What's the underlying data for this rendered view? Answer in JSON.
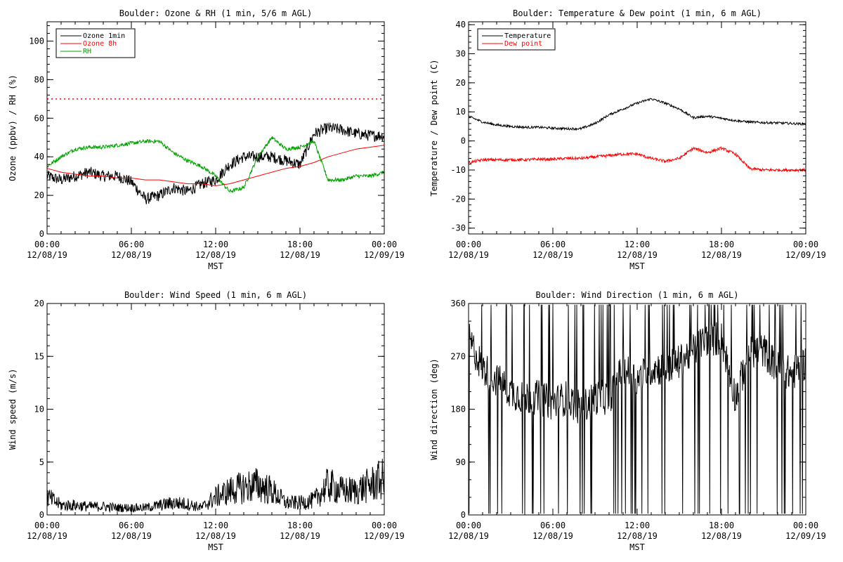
{
  "chart_data": [
    {
      "type": "line",
      "title": "Boulder: Ozone & RH (1 min, 5/6 m AGL)",
      "xlabel": "MST",
      "ylabel": "Ozone (ppbv) / RH (%)",
      "xlim": [
        "12/08/19 00:00",
        "12/09/19 00:00"
      ],
      "ylim": [
        0,
        110
      ],
      "yticks": [
        0,
        20,
        40,
        60,
        80,
        100
      ],
      "x_tick_labels": [
        {
          "time": "00:00",
          "date": "12/08/19"
        },
        {
          "time": "06:00",
          "date": "12/08/19"
        },
        {
          "time": "12:00",
          "date": "12/08/19"
        },
        {
          "time": "18:00",
          "date": "12/08/19"
        },
        {
          "time": "00:00",
          "date": "12/09/19"
        }
      ],
      "legend_position": "top-left",
      "reference_line": {
        "y": 70,
        "style": "dotted",
        "color": "#ff0000"
      },
      "series": [
        {
          "name": "Ozone 1min",
          "color": "#000000",
          "x": [
            "12/08/19 00:00",
            "12/08/19 01:00",
            "12/08/19 02:00",
            "12/08/19 03:00",
            "12/08/19 04:00",
            "12/08/19 05:00",
            "12/08/19 06:00",
            "12/08/19 07:00",
            "12/08/19 08:00",
            "12/08/19 09:00",
            "12/08/19 10:00",
            "12/08/19 11:00",
            "12/08/19 12:00",
            "12/08/19 13:00",
            "12/08/19 14:00",
            "12/08/19 15:00",
            "12/08/19 16:00",
            "12/08/19 17:00",
            "12/08/19 18:00",
            "12/08/19 19:00",
            "12/08/19 20:00",
            "12/08/19 21:00",
            "12/08/19 22:00",
            "12/08/19 23:00",
            "12/09/19 00:00"
          ],
          "y": [
            30,
            28,
            30,
            32,
            30,
            30,
            27,
            18,
            20,
            24,
            22,
            26,
            28,
            36,
            40,
            40,
            40,
            38,
            36,
            52,
            55,
            54,
            52,
            51,
            51
          ]
        },
        {
          "name": "Ozone 8h",
          "color": "#ff0000",
          "x": [
            "12/08/19 00:00",
            "12/08/19 01:00",
            "12/08/19 02:00",
            "12/08/19 03:00",
            "12/08/19 04:00",
            "12/08/19 05:00",
            "12/08/19 06:00",
            "12/08/19 07:00",
            "12/08/19 08:00",
            "12/08/19 09:00",
            "12/08/19 10:00",
            "12/08/19 11:00",
            "12/08/19 12:00",
            "12/08/19 13:00",
            "12/08/19 14:00",
            "12/08/19 15:00",
            "12/08/19 16:00",
            "12/08/19 17:00",
            "12/08/19 18:00",
            "12/08/19 19:00",
            "12/08/19 20:00",
            "12/08/19 21:00",
            "12/08/19 22:00",
            "12/08/19 23:00",
            "12/09/19 00:00"
          ],
          "y": [
            34,
            32,
            31,
            30,
            30,
            29,
            29,
            28,
            28,
            27,
            26,
            26,
            25,
            26,
            28,
            30,
            32,
            34,
            35,
            37,
            40,
            42,
            44,
            45,
            46
          ]
        },
        {
          "name": "RH",
          "color": "#00a000",
          "x": [
            "12/08/19 00:00",
            "12/08/19 01:00",
            "12/08/19 02:00",
            "12/08/19 03:00",
            "12/08/19 04:00",
            "12/08/19 05:00",
            "12/08/19 06:00",
            "12/08/19 07:00",
            "12/08/19 08:00",
            "12/08/19 09:00",
            "12/08/19 10:00",
            "12/08/19 11:00",
            "12/08/19 12:00",
            "12/08/19 13:00",
            "12/08/19 14:00",
            "12/08/19 15:00",
            "12/08/19 16:00",
            "12/08/19 17:00",
            "12/08/19 18:00",
            "12/08/19 19:00",
            "12/08/19 20:00",
            "12/08/19 21:00",
            "12/08/19 22:00",
            "12/08/19 23:00",
            "12/09/19 00:00"
          ],
          "y": [
            35,
            40,
            44,
            45,
            45,
            46,
            47,
            48,
            48,
            42,
            38,
            35,
            30,
            22,
            24,
            40,
            50,
            44,
            45,
            48,
            28,
            28,
            30,
            30,
            32
          ]
        }
      ]
    },
    {
      "type": "line",
      "title": "Boulder: Temperature & Dew point (1 min, 6 m AGL)",
      "xlabel": "MST",
      "ylabel": "Temperature / Dew point (C)",
      "xlim": [
        "12/08/19 00:00",
        "12/09/19 00:00"
      ],
      "ylim": [
        -32,
        41
      ],
      "yticks": [
        -30,
        -20,
        -10,
        0,
        10,
        20,
        30,
        40
      ],
      "x_tick_labels": [
        {
          "time": "00:00",
          "date": "12/08/19"
        },
        {
          "time": "06:00",
          "date": "12/08/19"
        },
        {
          "time": "12:00",
          "date": "12/08/19"
        },
        {
          "time": "18:00",
          "date": "12/08/19"
        },
        {
          "time": "00:00",
          "date": "12/09/19"
        }
      ],
      "legend_position": "top-left",
      "series": [
        {
          "name": "Temperature",
          "color": "#000000",
          "x": [
            "12/08/19 00:00",
            "12/08/19 01:00",
            "12/08/19 02:00",
            "12/08/19 03:00",
            "12/08/19 04:00",
            "12/08/19 05:00",
            "12/08/19 06:00",
            "12/08/19 07:00",
            "12/08/19 08:00",
            "12/08/19 09:00",
            "12/08/19 10:00",
            "12/08/19 11:00",
            "12/08/19 12:00",
            "12/08/19 13:00",
            "12/08/19 14:00",
            "12/08/19 15:00",
            "12/08/19 16:00",
            "12/08/19 17:00",
            "12/08/19 18:00",
            "12/08/19 19:00",
            "12/08/19 20:00",
            "12/08/19 21:00",
            "12/08/19 22:00",
            "12/08/19 23:00",
            "12/09/19 00:00"
          ],
          "y": [
            8.5,
            6.5,
            5.5,
            5,
            4.7,
            4.7,
            4.4,
            4.2,
            4.2,
            6,
            9,
            11,
            13,
            14.5,
            13,
            11,
            8,
            8.5,
            7.8,
            7,
            6.5,
            6.3,
            6.2,
            6,
            5.8
          ]
        },
        {
          "name": "Dew point",
          "color": "#ff0000",
          "x": [
            "12/08/19 00:00",
            "12/08/19 01:00",
            "12/08/19 02:00",
            "12/08/19 03:00",
            "12/08/19 04:00",
            "12/08/19 05:00",
            "12/08/19 06:00",
            "12/08/19 07:00",
            "12/08/19 08:00",
            "12/08/19 09:00",
            "12/08/19 10:00",
            "12/08/19 11:00",
            "12/08/19 12:00",
            "12/08/19 13:00",
            "12/08/19 14:00",
            "12/08/19 15:00",
            "12/08/19 16:00",
            "12/08/19 17:00",
            "12/08/19 18:00",
            "12/08/19 19:00",
            "12/08/19 20:00",
            "12/08/19 21:00",
            "12/08/19 22:00",
            "12/08/19 23:00",
            "12/09/19 00:00"
          ],
          "y": [
            -7.5,
            -6.5,
            -6.5,
            -6.5,
            -6.5,
            -6.3,
            -6.3,
            -6,
            -6,
            -5.5,
            -5,
            -4.5,
            -4.5,
            -6,
            -7,
            -6,
            -2.5,
            -4,
            -2.5,
            -4.5,
            -9.5,
            -10,
            -10,
            -10,
            -10
          ]
        }
      ]
    },
    {
      "type": "line",
      "title": "Boulder: Wind Speed (1 min, 6 m AGL)",
      "xlabel": "MST",
      "ylabel": "Wind speed (m/s)",
      "xlim": [
        "12/08/19 00:00",
        "12/09/19 00:00"
      ],
      "ylim": [
        0,
        20
      ],
      "yticks": [
        0,
        5,
        10,
        15,
        20
      ],
      "x_tick_labels": [
        {
          "time": "00:00",
          "date": "12/08/19"
        },
        {
          "time": "06:00",
          "date": "12/08/19"
        },
        {
          "time": "12:00",
          "date": "12/08/19"
        },
        {
          "time": "18:00",
          "date": "12/08/19"
        },
        {
          "time": "00:00",
          "date": "12/09/19"
        }
      ],
      "series": [
        {
          "color": "#000000",
          "x": [
            "12/08/19 00:00",
            "12/08/19 01:00",
            "12/08/19 02:00",
            "12/08/19 03:00",
            "12/08/19 04:00",
            "12/08/19 05:00",
            "12/08/19 06:00",
            "12/08/19 07:00",
            "12/08/19 08:00",
            "12/08/19 09:00",
            "12/08/19 10:00",
            "12/08/19 11:00",
            "12/08/19 12:00",
            "12/08/19 13:00",
            "12/08/19 14:00",
            "12/08/19 15:00",
            "12/08/19 16:00",
            "12/08/19 17:00",
            "12/08/19 18:00",
            "12/08/19 19:00",
            "12/08/19 20:00",
            "12/08/19 21:00",
            "12/08/19 22:00",
            "12/08/19 23:00",
            "12/09/19 00:00"
          ],
          "y": [
            1.5,
            0.8,
            0.8,
            0.7,
            0.7,
            0.6,
            0.6,
            0.6,
            0.8,
            1,
            0.9,
            0.6,
            1.5,
            2,
            2.3,
            2.5,
            2,
            1,
            1,
            1.2,
            2.5,
            2,
            2,
            2.5,
            3
          ]
        }
      ]
    },
    {
      "type": "line",
      "title": "Boulder: Wind Direction (1 min, 6 m AGL)",
      "xlabel": "MST",
      "ylabel": "Wind direction (deg)",
      "xlim": [
        "12/08/19 00:00",
        "12/09/19 00:00"
      ],
      "ylim": [
        0,
        360
      ],
      "yticks": [
        0,
        90,
        180,
        270,
        360
      ],
      "x_tick_labels": [
        {
          "time": "00:00",
          "date": "12/08/19"
        },
        {
          "time": "06:00",
          "date": "12/08/19"
        },
        {
          "time": "12:00",
          "date": "12/08/19"
        },
        {
          "time": "18:00",
          "date": "12/08/19"
        },
        {
          "time": "00:00",
          "date": "12/09/19"
        }
      ],
      "series": [
        {
          "color": "#000000",
          "x": [
            "12/08/19 00:00",
            "12/08/19 01:00",
            "12/08/19 02:00",
            "12/08/19 03:00",
            "12/08/19 04:00",
            "12/08/19 05:00",
            "12/08/19 06:00",
            "12/08/19 07:00",
            "12/08/19 08:00",
            "12/08/19 09:00",
            "12/08/19 10:00",
            "12/08/19 11:00",
            "12/08/19 12:00",
            "12/08/19 13:00",
            "12/08/19 14:00",
            "12/08/19 15:00",
            "12/08/19 16:00",
            "12/08/19 17:00",
            "12/08/19 18:00",
            "12/08/19 19:00",
            "12/08/19 20:00",
            "12/08/19 21:00",
            "12/08/19 22:00",
            "12/08/19 23:00",
            "12/09/19 00:00"
          ],
          "y": [
            300,
            250,
            230,
            210,
            200,
            200,
            190,
            200,
            180,
            200,
            200,
            250,
            230,
            250,
            250,
            260,
            280,
            300,
            300,
            200,
            280,
            280,
            250,
            240,
            260
          ]
        }
      ]
    }
  ]
}
